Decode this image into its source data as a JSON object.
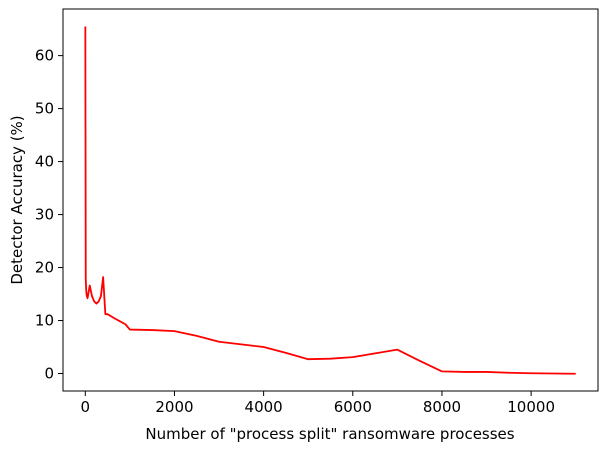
{
  "chart_data": {
    "type": "line",
    "title": "",
    "xlabel": "Number of \"process split\" ransomware processes",
    "ylabel": "Detector Accuracy (%)",
    "xlim": [
      -500,
      11500
    ],
    "ylim": [
      -3.3,
      68.8
    ],
    "xticks": [
      0,
      2000,
      4000,
      6000,
      8000,
      10000
    ],
    "xtick_labels": [
      "0",
      "2000",
      "4000",
      "6000",
      "8000",
      "10000"
    ],
    "yticks": [
      0,
      10,
      20,
      30,
      40,
      50,
      60
    ],
    "ytick_labels": [
      "0",
      "10",
      "20",
      "30",
      "40",
      "50",
      "60"
    ],
    "grid": false,
    "series": [
      {
        "color": "#ff0000",
        "x": [
          1,
          10,
          20,
          30,
          50,
          75,
          100,
          150,
          200,
          250,
          300,
          350,
          400,
          450,
          500,
          700,
          900,
          1000,
          1500,
          2000,
          2500,
          3000,
          3500,
          4000,
          4500,
          5000,
          5500,
          6000,
          6500,
          7000,
          7500,
          8000,
          8500,
          9000,
          9500,
          10000,
          10500,
          11000
        ],
        "y": [
          65.5,
          18.0,
          15.8,
          14.8,
          14.2,
          15.4,
          16.6,
          14.6,
          13.6,
          13.2,
          13.6,
          14.6,
          18.2,
          11.2,
          11.2,
          10.2,
          9.3,
          8.3,
          8.2,
          8.0,
          7.1,
          6.0,
          5.5,
          5.0,
          3.9,
          2.7,
          2.8,
          3.1,
          3.8,
          4.5,
          2.4,
          0.4,
          0.3,
          0.3,
          0.15,
          0.05,
          0.0,
          -0.05
        ]
      }
    ]
  }
}
